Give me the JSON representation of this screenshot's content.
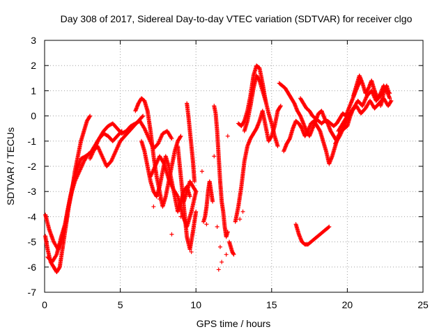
{
  "chart_data": {
    "type": "scatter",
    "title": "Day 308 of 2017, Sidereal Day-to-day VTEC variation (SDTVAR) for receiver clgo",
    "xlabel": "GPS time / hours",
    "ylabel": "SDTVAR / TECUs",
    "xlim": [
      0,
      25
    ],
    "ylim": [
      -7,
      3
    ],
    "xticks": [
      "0",
      "5",
      "10",
      "15",
      "20",
      "25"
    ],
    "yticks": [
      "-7",
      "-6",
      "-5",
      "-4",
      "-3",
      "-2",
      "-1",
      "0",
      "1",
      "2",
      "3"
    ],
    "grid": true,
    "marker": "+",
    "color": "#ff0000",
    "segments": [
      {
        "x": [
          0.0,
          0.2,
          0.4,
          0.6,
          0.8,
          1.0,
          1.2,
          1.4,
          1.6,
          1.8,
          2.0,
          2.2,
          2.4,
          2.6,
          2.8,
          3.0
        ],
        "y": [
          -4.6,
          -5.3,
          -5.8,
          -6.0,
          -6.2,
          -6.0,
          -5.2,
          -4.4,
          -3.6,
          -3.0,
          -2.2,
          -1.6,
          -1.0,
          -0.6,
          -0.2,
          0.0
        ]
      },
      {
        "x": [
          0.0,
          0.3,
          0.6,
          0.9,
          1.2,
          1.5,
          1.8,
          2.1,
          2.4,
          2.7,
          3.0,
          3.3,
          3.6,
          3.9,
          4.2,
          4.5,
          4.8,
          5.1
        ],
        "y": [
          -3.8,
          -4.5,
          -5.0,
          -5.3,
          -4.8,
          -3.8,
          -2.9,
          -2.2,
          -1.7,
          -1.6,
          -1.5,
          -1.2,
          -0.9,
          -0.7,
          -0.8,
          -1.0,
          -0.8,
          -0.6
        ]
      },
      {
        "x": [
          0.2,
          0.5,
          0.8,
          1.1,
          1.4,
          1.7,
          2.0,
          2.3,
          2.6,
          2.9,
          3.2,
          3.5,
          3.8,
          4.1,
          4.4,
          4.7,
          5.0,
          5.3,
          5.6,
          5.9,
          6.2,
          6.5
        ],
        "y": [
          -5.6,
          -5.8,
          -5.5,
          -4.8,
          -4.2,
          -3.2,
          -2.6,
          -2.2,
          -1.8,
          -1.5,
          -1.4,
          -1.2,
          -1.6,
          -2.0,
          -1.8,
          -1.4,
          -1.0,
          -0.8,
          -0.6,
          -0.4,
          -0.2,
          0.0
        ]
      },
      {
        "x": [
          3.0,
          3.3,
          3.6,
          3.9,
          4.2,
          4.5,
          4.8,
          5.1,
          5.4,
          5.7,
          6.0,
          6.3,
          6.6,
          6.9,
          7.2,
          7.5,
          7.8,
          8.1,
          8.4
        ],
        "y": [
          -1.7,
          -1.3,
          -0.9,
          -0.6,
          -0.4,
          -0.3,
          -0.5,
          -0.7,
          -0.6,
          -0.4,
          -0.3,
          -0.2,
          -0.5,
          -0.9,
          -1.3,
          -1.1,
          -0.7,
          -0.6,
          -0.9
        ]
      },
      {
        "x": [
          6.0,
          6.2,
          6.4,
          6.6,
          6.8,
          7.0,
          7.2,
          7.4,
          7.6,
          7.8,
          8.0,
          8.2,
          8.4,
          8.6,
          8.8,
          9.0
        ],
        "y": [
          0.2,
          0.5,
          0.7,
          0.6,
          0.2,
          -0.6,
          -1.6,
          -2.4,
          -3.0,
          -3.6,
          -3.2,
          -2.6,
          -2.0,
          -1.4,
          -1.0,
          -0.8
        ]
      },
      {
        "x": [
          6.4,
          6.6,
          6.8,
          7.0,
          7.2,
          7.4,
          7.6,
          7.8,
          8.0,
          8.2,
          8.4,
          8.6,
          8.8,
          9.0,
          9.2,
          9.4,
          9.6
        ],
        "y": [
          -1.0,
          -1.4,
          -2.0,
          -2.6,
          -3.0,
          -3.2,
          -2.8,
          -2.2,
          -1.6,
          -2.0,
          -2.6,
          -3.2,
          -3.8,
          -3.4,
          -3.0,
          -2.8,
          -3.2
        ]
      },
      {
        "x": [
          7.0,
          7.3,
          7.6,
          7.9,
          8.2,
          8.5,
          8.8,
          9.1,
          9.4,
          9.7,
          10.0
        ],
        "y": [
          -2.4,
          -2.0,
          -1.6,
          -1.9,
          -2.5,
          -2.9,
          -3.2,
          -3.9,
          -4.4,
          -3.8,
          -3.0
        ]
      },
      {
        "x": [
          8.8,
          9.0,
          9.2,
          9.4,
          9.6,
          9.8,
          10.0
        ],
        "y": [
          -1.2,
          -2.4,
          -3.6,
          -4.8,
          -5.3,
          -4.6,
          -3.8
        ]
      },
      {
        "x": [
          9.2,
          9.4,
          9.6,
          9.8,
          10.0
        ],
        "y": [
          -3.4,
          -3.0,
          -2.6,
          -2.8,
          -3.0
        ]
      },
      {
        "x": [
          9.4,
          9.5,
          9.6,
          9.7,
          9.8,
          9.9
        ],
        "y": [
          0.5,
          0.0,
          -0.6,
          -1.2,
          -1.8,
          -2.6
        ]
      },
      {
        "x": [
          10.5,
          10.6,
          10.7,
          10.8,
          10.9,
          11.0,
          11.1
        ],
        "y": [
          -4.2,
          -4.0,
          -3.6,
          -3.0,
          -2.6,
          -3.0,
          -3.4
        ]
      },
      {
        "x": [
          11.2,
          11.3,
          11.4,
          11.5,
          11.6,
          11.7,
          11.8,
          11.9,
          12.0,
          12.1
        ],
        "y": [
          0.4,
          0.1,
          -0.6,
          -1.6,
          -2.6,
          -3.4,
          -3.8,
          -4.4,
          -4.8,
          -4.6
        ]
      },
      {
        "x": [
          12.2,
          12.3,
          12.4,
          12.5
        ],
        "y": [
          -5.0,
          -5.2,
          -5.4,
          -5.5
        ]
      },
      {
        "x": [
          12.6,
          12.8,
          13.0,
          13.2,
          13.4,
          13.6,
          13.8,
          14.0,
          14.2,
          14.4,
          14.6,
          14.8,
          15.0,
          15.2,
          15.4,
          15.6
        ],
        "y": [
          -4.2,
          -3.6,
          -2.8,
          -1.8,
          -1.2,
          -0.9,
          -0.7,
          -0.5,
          -0.2,
          0.2,
          -0.4,
          -1.0,
          -0.8,
          -0.4,
          0.2,
          0.4
        ]
      },
      {
        "x": [
          12.8,
          13.0,
          13.2,
          13.4,
          13.6,
          13.8,
          14.0,
          14.2,
          14.4,
          14.6,
          14.8,
          15.0,
          15.2,
          15.4
        ],
        "y": [
          -0.3,
          -0.4,
          -0.2,
          0.2,
          0.8,
          1.6,
          2.0,
          1.9,
          1.3,
          0.6,
          0.1,
          -0.3,
          -0.8,
          -1.2
        ]
      },
      {
        "x": [
          13.2,
          13.4,
          13.6,
          13.8,
          14.0,
          14.2,
          14.4,
          14.6
        ],
        "y": [
          -0.6,
          -0.2,
          0.4,
          1.1,
          1.6,
          1.4,
          1.0,
          0.6
        ]
      },
      {
        "x": [
          15.5,
          15.7,
          15.9,
          16.1,
          16.3,
          16.5,
          16.7,
          16.9,
          17.1,
          17.3,
          17.5,
          17.7,
          17.9,
          18.1,
          18.3,
          18.5,
          18.7,
          18.9,
          19.1,
          19.3
        ],
        "y": [
          1.3,
          1.2,
          1.1,
          0.9,
          0.7,
          0.5,
          0.2,
          0.0,
          -0.3,
          -0.6,
          -0.8,
          -0.5,
          -0.2,
          0.1,
          0.2,
          -0.1,
          -0.3,
          -0.6,
          -0.8,
          -1.0
        ]
      },
      {
        "x": [
          15.8,
          16.0,
          16.2,
          16.4,
          16.6,
          16.8,
          17.0,
          17.2,
          17.4,
          17.6,
          17.8,
          18.0,
          18.2,
          18.4,
          18.6,
          18.8,
          19.0,
          19.2,
          19.4,
          19.6,
          19.8,
          20.0,
          20.2,
          20.4
        ],
        "y": [
          -1.4,
          -1.1,
          -0.9,
          -0.5,
          -0.2,
          -0.3,
          -0.5,
          -0.8,
          -0.6,
          -0.3,
          -0.2,
          -0.4,
          -0.6,
          -1.0,
          -1.4,
          -1.9,
          -1.6,
          -1.2,
          -0.8,
          -0.6,
          -0.5,
          -0.4,
          0.0,
          0.3
        ]
      },
      {
        "x": [
          16.9,
          17.1,
          17.3,
          17.5,
          17.7,
          17.9,
          18.1,
          18.3,
          18.5,
          18.7,
          18.9,
          19.1,
          19.3,
          19.5,
          19.7,
          19.9,
          20.1,
          20.3,
          20.5,
          20.7,
          20.9
        ],
        "y": [
          0.7,
          0.5,
          0.3,
          0.2,
          0.0,
          -0.1,
          -0.2,
          -0.3,
          -0.2,
          -0.2,
          -0.3,
          -0.4,
          -0.3,
          -0.1,
          0.1,
          0.0,
          0.3,
          0.6,
          0.9,
          1.2,
          1.4
        ]
      },
      {
        "x": [
          16.6,
          16.8,
          17.0,
          17.2,
          17.4,
          17.6,
          17.8,
          18.0,
          18.2,
          18.4,
          18.6,
          18.8
        ],
        "y": [
          -4.3,
          -4.7,
          -5.0,
          -5.1,
          -5.1,
          -5.0,
          -4.9,
          -4.8,
          -4.7,
          -4.6,
          -4.5,
          -4.4
        ]
      },
      {
        "x": [
          19.2,
          19.5,
          19.8,
          20.1,
          20.4,
          20.7,
          21.0,
          21.3,
          21.6,
          21.9,
          22.2,
          22.5,
          22.8
        ],
        "y": [
          -1.1,
          -0.8,
          -0.4,
          0.0,
          0.3,
          0.6,
          0.4,
          0.8,
          1.0,
          0.6,
          0.8,
          1.1,
          0.9
        ]
      },
      {
        "x": [
          19.4,
          19.7,
          20.0,
          20.3,
          20.6,
          20.9,
          21.2,
          21.5,
          21.8,
          22.1,
          22.4,
          22.7,
          22.9
        ],
        "y": [
          -0.6,
          -0.3,
          0.0,
          0.2,
          0.4,
          0.1,
          0.3,
          0.6,
          0.3,
          0.5,
          0.7,
          0.4,
          0.6
        ]
      },
      {
        "x": [
          20.4,
          20.6,
          20.8,
          21.0,
          21.2,
          21.4,
          21.6,
          21.8,
          22.0,
          22.2,
          22.4,
          22.6,
          22.8
        ],
        "y": [
          0.8,
          1.2,
          1.6,
          1.3,
          0.9,
          1.1,
          1.4,
          1.0,
          0.7,
          0.9,
          1.2,
          1.0,
          0.7
        ]
      },
      {
        "x": [
          22.2,
          22.3,
          22.4,
          22.5,
          22.6,
          22.7
        ],
        "y": [
          0.4,
          0.6,
          0.9,
          1.1,
          1.2,
          1.0
        ]
      }
    ],
    "points": [
      {
        "x": 8.4,
        "y": -4.7
      },
      {
        "x": 10.4,
        "y": -2.2
      },
      {
        "x": 10.7,
        "y": -4.3
      },
      {
        "x": 11.4,
        "y": -4.4
      },
      {
        "x": 11.6,
        "y": -5.2
      },
      {
        "x": 11.7,
        "y": -5.8
      },
      {
        "x": 11.5,
        "y": -6.1
      },
      {
        "x": 12.0,
        "y": -5.5
      },
      {
        "x": 12.1,
        "y": -0.8
      },
      {
        "x": 11.2,
        "y": -1.6
      },
      {
        "x": 12.9,
        "y": -4.1
      },
      {
        "x": 13.1,
        "y": -3.8
      },
      {
        "x": 9.7,
        "y": -5.4
      },
      {
        "x": 9.0,
        "y": -4.0
      },
      {
        "x": 7.6,
        "y": -3.3
      },
      {
        "x": 7.2,
        "y": -3.6
      }
    ]
  }
}
